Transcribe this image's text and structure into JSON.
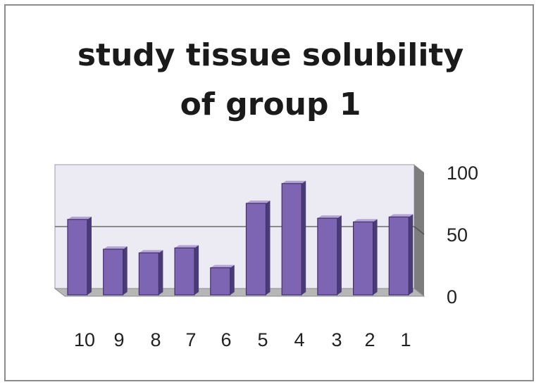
{
  "chart_data": {
    "type": "bar",
    "title_lines": [
      "study tissue solubility",
      "of group 1"
    ],
    "categories": [
      "10",
      "9",
      "8",
      "7",
      "6",
      "5",
      "4",
      "3",
      "2",
      "1"
    ],
    "values": [
      62,
      38,
      35,
      39,
      23,
      75,
      91,
      63,
      60,
      64
    ],
    "ylim": [
      0,
      100
    ],
    "yticks": [
      0,
      50,
      100
    ],
    "y_axis_side": "right",
    "grid": true,
    "legend": "none",
    "colors": {
      "bar_front": "#7e65b4",
      "bar_side": "#4a3a76",
      "bar_top": "#b5a3dc",
      "back_wall": "#ecebf4",
      "floor": "#b7b7b7",
      "side_wall": "#7d7d7d"
    }
  }
}
